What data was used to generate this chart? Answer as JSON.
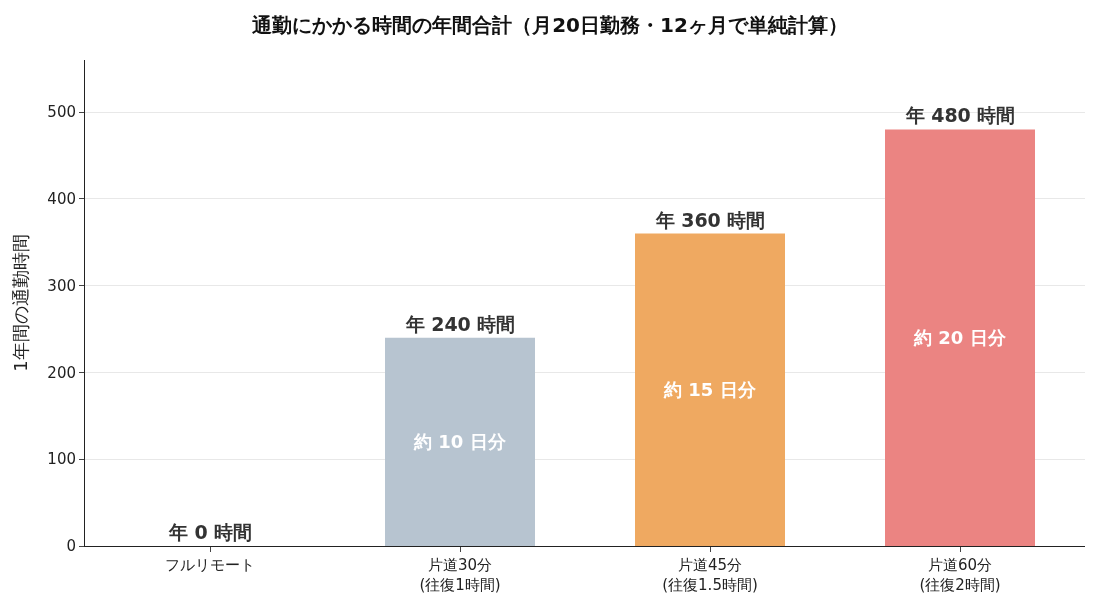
{
  "chart_data": {
    "type": "bar",
    "title": "通勤にかかる時間の年間合計（月20日勤務・12ヶ月で単純計算）",
    "ylabel": "1年間の通勤時間",
    "categories": [
      "フルリモート",
      "片道30分\n(往復1時間)",
      "片道45分\n(往復1.5時間)",
      "片道60分\n(往復2時間)"
    ],
    "values": [
      0,
      240,
      360,
      480
    ],
    "colors": [
      "#9aa8b6",
      "#b7c4d0",
      "#efa961",
      "#eb8482"
    ],
    "value_labels": [
      "年 0 時間",
      "年 240 時間",
      "年 360 時間",
      "年 480 時間"
    ],
    "annotations": [
      "約 10 日分",
      "約 15 日分",
      "約 20 日分"
    ],
    "ylim": [
      0,
      560
    ],
    "yticks": [
      0,
      100,
      200,
      300,
      400,
      500
    ],
    "grid": "y",
    "legend": false
  }
}
